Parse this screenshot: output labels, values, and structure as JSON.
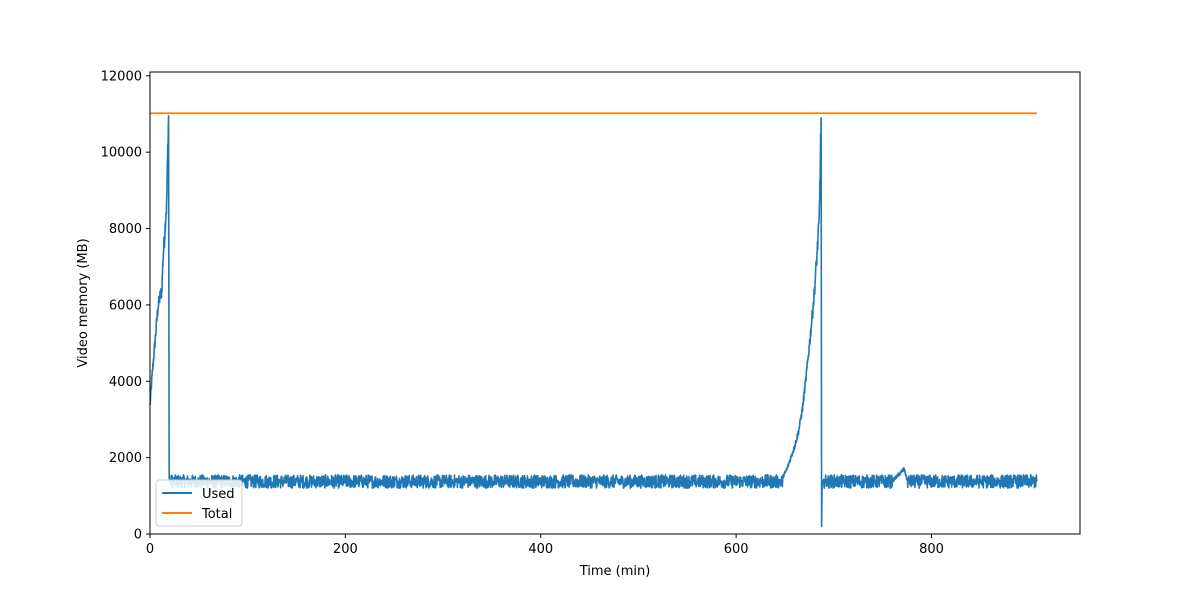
{
  "chart_data": {
    "type": "line",
    "title": "",
    "xlabel": "Time (min)",
    "ylabel": "Video memory (MB)",
    "xlim": [
      0,
      952
    ],
    "ylim": [
      0,
      12100
    ],
    "xticks": [
      0,
      200,
      400,
      600,
      800
    ],
    "yticks": [
      0,
      2000,
      4000,
      6000,
      8000,
      10000,
      12000
    ],
    "grid": false,
    "legend_position": "lower-left",
    "series": [
      {
        "name": "Used",
        "color": "#1f77b4",
        "noise_band": [
          1200,
          1550
        ],
        "points": [
          [
            0,
            3350
          ],
          [
            2,
            4100
          ],
          [
            4,
            4700
          ],
          [
            6,
            5300
          ],
          [
            8,
            5900
          ],
          [
            10,
            6200
          ],
          [
            12,
            6350
          ],
          [
            13,
            7000
          ],
          [
            14,
            7500
          ],
          [
            15,
            7800
          ],
          [
            16,
            8300
          ],
          [
            17,
            8600
          ],
          [
            18,
            9800
          ],
          [
            19,
            10950
          ],
          [
            19.6,
            1500
          ],
          [
            20,
            1420
          ],
          [
            100,
            1400
          ],
          [
            200,
            1390
          ],
          [
            300,
            1400
          ],
          [
            400,
            1380
          ],
          [
            500,
            1390
          ],
          [
            600,
            1400
          ],
          [
            640,
            1400
          ],
          [
            648,
            1500
          ],
          [
            652,
            1700
          ],
          [
            656,
            2000
          ],
          [
            660,
            2300
          ],
          [
            664,
            2700
          ],
          [
            668,
            3300
          ],
          [
            672,
            4200
          ],
          [
            676,
            5200
          ],
          [
            680,
            6300
          ],
          [
            683,
            7400
          ],
          [
            685,
            8200
          ],
          [
            686,
            9500
          ],
          [
            687,
            10900
          ],
          [
            687.5,
            200
          ],
          [
            688,
            1300
          ],
          [
            690,
            1420
          ],
          [
            700,
            1380
          ],
          [
            760,
            1390
          ],
          [
            772,
            1700
          ],
          [
            775,
            1420
          ],
          [
            800,
            1390
          ],
          [
            850,
            1400
          ],
          [
            908,
            1420
          ]
        ]
      },
      {
        "name": "Total",
        "color": "#ff7f0e",
        "points": [
          [
            0,
            11019
          ],
          [
            908,
            11019
          ]
        ]
      }
    ]
  }
}
